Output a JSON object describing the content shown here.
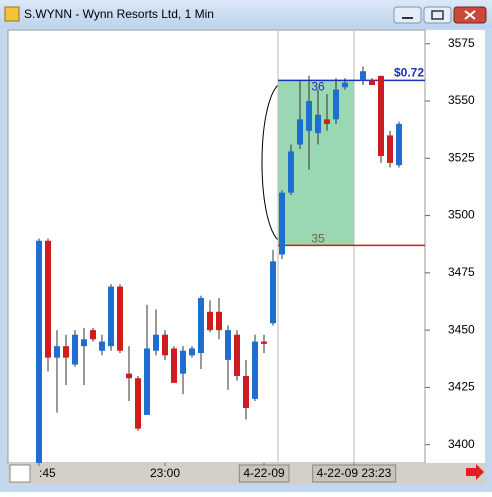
{
  "window_title": "S.WYNN - Wynn Resorts Ltd, 1 Min",
  "chart_data": {
    "type": "candlestick",
    "up_color": "#1c6fd0",
    "down_color": "#d01c1c",
    "open": [
      3392,
      3489,
      3438,
      3443,
      3435,
      3443,
      3450,
      3441,
      3443,
      3469,
      3431,
      3429,
      3413,
      3441,
      3448,
      3442,
      3431,
      3439,
      3440,
      3458,
      3458,
      3437,
      3448,
      3430,
      3420,
      3445,
      3453,
      3483,
      3510,
      3531,
      3537,
      3536,
      3542,
      3542,
      3556,
      null,
      3559,
      3559,
      3561,
      3535,
      3522
    ],
    "high": [
      3490,
      3490,
      3450,
      3448,
      3450,
      3451,
      3451,
      3448,
      3470,
      3470,
      3443,
      3430,
      3461,
      3459,
      3450,
      3443,
      3443,
      3443,
      3465,
      3463,
      3464,
      3452,
      3450,
      3437,
      3448,
      3448,
      3485,
      3511,
      3531,
      3559,
      3561,
      3555,
      3553,
      3560,
      3560,
      null,
      3565,
      3560,
      3561,
      3537,
      3541
    ],
    "low": [
      3392,
      3432,
      3414,
      3426,
      3434,
      3426,
      3445,
      3439,
      3441,
      3440,
      3419,
      3406,
      3413,
      3439,
      3437,
      3427,
      3422,
      3438,
      3433,
      3449,
      3446,
      3424,
      3428,
      3411,
      3419,
      3440,
      3452,
      3481,
      3509,
      3529,
      3520,
      3531,
      3537,
      3540,
      3555,
      null,
      3557,
      3557,
      3523,
      3521,
      3521
    ],
    "close": [
      3489,
      3438,
      3443,
      3438,
      3448,
      3446,
      3446,
      3445,
      3469,
      3441,
      3429,
      3407,
      3442,
      3448,
      3439,
      3427,
      3441,
      3442,
      3464,
      3450,
      3450,
      3450,
      3430,
      3416,
      3445,
      3444,
      3480,
      3510,
      3528,
      3542,
      3550,
      3544,
      3540,
      3555,
      3558,
      null,
      3563,
      3557,
      3526,
      3523,
      3540
    ],
    "ylim": [
      3392,
      3581
    ],
    "yticks": [
      3400,
      3425,
      3450,
      3475,
      3500,
      3525,
      3550,
      3575
    ],
    "xticks": [
      {
        "value": 0,
        "label": ":45"
      },
      {
        "value": 14,
        "label": "23:00"
      },
      {
        "value": 25,
        "label": "4-22-09"
      },
      {
        "value": 35,
        "label": "4-22-09  23:23"
      }
    ],
    "trade": {
      "start": 27,
      "end": 35,
      "entry": 3487,
      "exit": 3559,
      "entry_label": "35",
      "exit_label": "36",
      "gain_label": "$0.72"
    }
  }
}
